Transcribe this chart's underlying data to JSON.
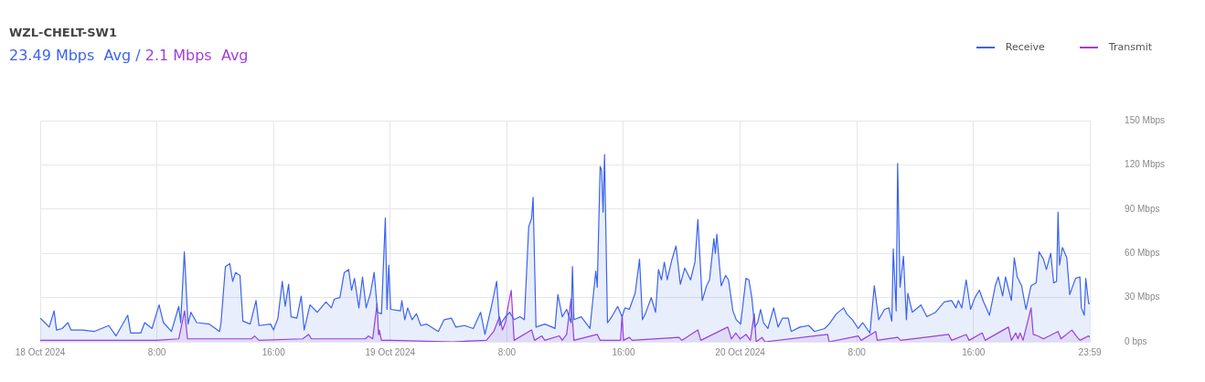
{
  "chart_data": {
    "type": "area",
    "title": "WZL-CHELT-SW1",
    "subtitle": "23.49 Mbps  Avg / 2.1 Mbps  Avg",
    "legend": "top right",
    "grid": true,
    "line_style": "solid",
    "xlim": [
      "2024-10-18T00:00",
      "2024-10-20T23:59"
    ],
    "xticks": [
      {
        "value": "2024-10-18T00:00",
        "label": "18 Oct 2024"
      },
      {
        "value": "2024-10-18T08:00",
        "label": "8:00"
      },
      {
        "value": "2024-10-18T16:00",
        "label": "16:00"
      },
      {
        "value": "2024-10-19T00:00",
        "label": "19 Oct 2024"
      },
      {
        "value": "2024-10-19T08:00",
        "label": "8:00"
      },
      {
        "value": "2024-10-19T16:00",
        "label": "16:00"
      },
      {
        "value": "2024-10-20T00:00",
        "label": "20 Oct 2024"
      },
      {
        "value": "2024-10-20T08:00",
        "label": "8:00"
      },
      {
        "value": "2024-10-20T16:00",
        "label": "16:00"
      },
      {
        "value": "2024-10-20T23:59",
        "label": "23:59"
      }
    ],
    "ylim": [
      0,
      150
    ],
    "yticks": [
      {
        "value": 0,
        "label": "0 bps"
      },
      {
        "value": 30,
        "label": "30 Mbps"
      },
      {
        "value": 60,
        "label": "60 Mbps"
      },
      {
        "value": 90,
        "label": "90 Mbps"
      },
      {
        "value": 120,
        "label": "120 Mbps"
      },
      {
        "value": 150,
        "label": "150 Mbps"
      }
    ],
    "series": [
      {
        "name": "Receive",
        "color": "#3b63f0",
        "x": [
          "2024-10-18T00:00",
          "2024-10-18T00:19",
          "2024-10-18T00:37",
          "2024-10-18T00:57",
          "2024-10-18T01:07",
          "2024-10-18T01:30",
          "2024-10-18T01:54",
          "2024-10-18T02:06",
          "2024-10-18T02:54",
          "2024-10-18T03:42",
          "2024-10-18T04:42",
          "2024-10-18T05:12",
          "2024-10-18T06:00",
          "2024-10-18T06:12",
          "2024-10-18T06:54",
          "2024-10-18T07:10",
          "2024-10-18T07:40",
          "2024-10-18T08:09",
          "2024-10-18T08:27",
          "2024-10-18T09:00",
          "2024-10-18T09:30",
          "2024-10-18T09:38",
          "2024-10-18T09:53",
          "2024-10-18T10:08",
          "2024-10-18T10:20",
          "2024-10-18T10:44",
          "2024-10-18T11:36",
          "2024-10-18T12:18",
          "2024-10-18T12:24",
          "2024-10-18T12:42",
          "2024-10-18T13:00",
          "2024-10-18T13:12",
          "2024-10-18T13:24",
          "2024-10-18T13:42",
          "2024-10-18T13:54",
          "2024-10-18T14:24",
          "2024-10-18T14:48",
          "2024-10-18T15:00",
          "2024-10-18T15:48",
          "2024-10-18T16:00",
          "2024-10-18T16:18",
          "2024-10-18T16:36",
          "2024-10-18T16:48",
          "2024-10-18T17:02",
          "2024-10-18T17:12",
          "2024-10-18T17:36",
          "2024-10-18T17:54",
          "2024-10-18T18:06",
          "2024-10-18T18:30",
          "2024-10-18T19:00",
          "2024-10-18T19:36",
          "2024-10-18T19:58",
          "2024-10-18T20:10",
          "2024-10-18T20:33",
          "2024-10-18T20:51",
          "2024-10-18T21:09",
          "2024-10-18T21:21",
          "2024-10-18T21:33",
          "2024-10-18T21:51",
          "2024-10-18T22:06",
          "2024-10-18T22:21",
          "2024-10-18T22:39",
          "2024-10-18T22:54",
          "2024-10-18T23:08",
          "2024-10-18T23:24",
          "2024-10-18T23:40",
          "2024-10-18T23:47",
          "2024-10-18T23:54",
          "2024-10-19T00:02",
          "2024-10-19T00:42",
          "2024-10-19T00:48",
          "2024-10-19T01:00",
          "2024-10-19T01:12",
          "2024-10-19T01:30",
          "2024-10-19T01:48",
          "2024-10-19T02:06",
          "2024-10-19T02:30",
          "2024-10-19T03:18",
          "2024-10-19T03:42",
          "2024-10-19T04:12",
          "2024-10-19T04:30",
          "2024-10-19T05:06",
          "2024-10-19T05:42",
          "2024-10-19T06:12",
          "2024-10-19T06:30",
          "2024-10-19T06:54",
          "2024-10-19T07:18",
          "2024-10-19T07:30",
          "2024-10-19T07:54",
          "2024-10-19T08:12",
          "2024-10-19T08:30",
          "2024-10-19T08:54",
          "2024-10-19T09:12",
          "2024-10-19T09:30",
          "2024-10-19T09:42",
          "2024-10-19T09:48",
          "2024-10-19T10:00",
          "2024-10-19T10:36",
          "2024-10-19T11:06",
          "2024-10-19T11:18",
          "2024-10-19T11:30",
          "2024-10-19T11:48",
          "2024-10-19T12:06",
          "2024-10-19T12:24",
          "2024-10-19T12:30",
          "2024-10-19T12:36",
          "2024-10-19T13:06",
          "2024-10-19T13:42",
          "2024-10-19T14:06",
          "2024-10-19T14:12",
          "2024-10-19T14:24",
          "2024-10-19T14:30",
          "2024-10-19T14:36",
          "2024-10-19T14:42",
          "2024-10-19T14:54",
          "2024-10-19T15:12",
          "2024-10-19T15:36",
          "2024-10-19T15:54",
          "2024-10-19T16:06",
          "2024-10-19T16:24",
          "2024-10-19T16:48",
          "2024-10-19T17:06",
          "2024-10-19T17:18",
          "2024-10-19T17:30",
          "2024-10-19T17:54",
          "2024-10-19T18:12",
          "2024-10-19T18:24",
          "2024-10-19T18:36",
          "2024-10-19T18:48",
          "2024-10-19T19:00",
          "2024-10-19T19:18",
          "2024-10-19T19:36",
          "2024-10-19T19:54",
          "2024-10-19T20:12",
          "2024-10-19T20:36",
          "2024-10-19T20:54",
          "2024-10-19T21:06",
          "2024-10-19T21:24",
          "2024-10-19T21:42",
          "2024-10-19T21:54",
          "2024-10-19T22:12",
          "2024-10-19T22:18",
          "2024-10-19T22:24",
          "2024-10-19T22:42",
          "2024-10-19T23:00",
          "2024-10-19T23:12",
          "2024-10-19T23:30",
          "2024-10-19T23:44",
          "2024-10-20T00:02",
          "2024-10-20T00:12",
          "2024-10-20T00:24",
          "2024-10-20T00:36",
          "2024-10-20T00:48",
          "2024-10-20T01:00",
          "2024-10-20T01:12",
          "2024-10-20T01:24",
          "2024-10-20T01:36",
          "2024-10-20T01:54",
          "2024-10-20T02:18",
          "2024-10-20T02:36",
          "2024-10-20T02:54",
          "2024-10-20T03:18",
          "2024-10-20T03:30",
          "2024-10-20T04:06",
          "2024-10-20T04:42",
          "2024-10-20T05:06",
          "2024-10-20T05:48",
          "2024-10-20T06:06",
          "2024-10-20T06:36",
          "2024-10-20T07:06",
          "2024-10-20T07:18",
          "2024-10-20T07:42",
          "2024-10-20T08:06",
          "2024-10-20T08:24",
          "2024-10-20T08:54",
          "2024-10-20T09:12",
          "2024-10-20T09:30",
          "2024-10-20T09:54",
          "2024-10-20T10:12",
          "2024-10-20T10:24",
          "2024-10-20T10:30",
          "2024-10-20T10:42",
          "2024-10-20T10:48",
          "2024-10-20T10:58",
          "2024-10-20T11:12",
          "2024-10-20T11:24",
          "2024-10-20T11:30",
          "2024-10-20T11:48",
          "2024-10-20T12:24",
          "2024-10-20T12:48",
          "2024-10-20T13:24",
          "2024-10-20T14:00",
          "2024-10-20T14:30",
          "2024-10-20T14:48",
          "2024-10-20T14:58",
          "2024-10-20T15:12",
          "2024-10-20T15:30",
          "2024-10-20T15:48",
          "2024-10-20T16:06",
          "2024-10-20T16:24",
          "2024-10-20T16:42",
          "2024-10-20T17:06",
          "2024-10-20T17:30",
          "2024-10-20T17:42",
          "2024-10-20T18:00",
          "2024-10-20T18:12",
          "2024-10-20T18:36",
          "2024-10-20T18:48",
          "2024-10-20T19:00",
          "2024-10-20T19:18",
          "2024-10-20T19:36",
          "2024-10-20T19:57",
          "2024-10-20T20:18",
          "2024-10-20T20:30",
          "2024-10-20T20:48",
          "2024-10-20T21:00",
          "2024-10-20T21:18",
          "2024-10-20T21:30",
          "2024-10-20T21:42",
          "2024-10-20T21:48",
          "2024-10-20T21:54",
          "2024-10-20T22:06",
          "2024-10-20T22:24",
          "2024-10-20T22:36",
          "2024-10-20T23:00",
          "2024-10-20T23:18",
          "2024-10-20T23:24",
          "2024-10-20T23:36",
          "2024-10-20T23:42",
          "2024-10-20T23:54",
          "2024-10-20T23:59"
        ],
        "values": [
          16,
          13,
          10,
          21,
          8,
          9,
          13,
          8,
          8,
          7,
          11,
          4,
          18,
          6,
          6,
          13,
          9,
          25,
          13,
          7,
          24,
          13,
          61,
          12,
          20,
          13,
          12,
          7,
          13,
          51,
          53,
          41,
          47,
          45,
          14,
          12,
          28,
          11,
          12,
          8,
          16,
          41,
          24,
          39,
          17,
          16,
          31,
          8,
          25,
          20,
          27,
          23,
          29,
          30,
          47,
          49,
          35,
          43,
          23,
          44,
          23,
          33,
          47,
          20,
          19,
          84,
          22,
          52,
          22,
          21,
          28,
          15,
          23,
          15,
          19,
          11,
          12,
          7,
          15,
          16,
          10,
          11,
          9,
          20,
          5,
          22,
          41,
          11,
          17,
          20,
          15,
          17,
          15,
          78,
          84,
          98,
          10,
          12,
          10,
          9,
          32,
          17,
          22,
          13,
          51,
          15,
          17,
          9,
          48,
          37,
          119,
          116,
          88,
          127,
          13,
          17,
          24,
          17,
          23,
          22,
          33,
          56,
          15,
          19,
          30,
          20,
          49,
          42,
          54,
          42,
          55,
          65,
          39,
          50,
          42,
          54,
          83,
          28,
          38,
          42,
          70,
          60,
          73,
          38,
          45,
          42,
          21,
          15,
          12,
          26,
          43,
          42,
          30,
          10,
          13,
          22,
          13,
          9,
          23,
          10,
          16,
          16,
          7,
          10,
          11,
          7,
          9,
          12,
          19,
          23,
          19,
          15,
          9,
          13,
          6,
          38,
          15,
          22,
          23,
          14,
          63,
          21,
          121,
          37,
          58,
          15,
          33,
          20,
          25,
          17,
          20,
          27,
          28,
          23,
          28,
          23,
          42,
          22,
          30,
          35,
          27,
          18,
          38,
          44,
          31,
          44,
          28,
          57,
          44,
          38,
          22,
          38,
          40,
          61,
          56,
          49,
          60,
          40,
          41,
          88,
          52,
          64,
          57,
          32,
          43,
          44,
          23,
          18,
          43,
          26,
          26
        ]
      },
      {
        "name": "Transmit",
        "color": "#a23ed8",
        "x": [
          "2024-10-18T00:00",
          "2024-10-18T05:00",
          "2024-10-18T08:00",
          "2024-10-18T09:30",
          "2024-10-18T09:54",
          "2024-10-18T10:06",
          "2024-10-18T12:00",
          "2024-10-18T14:30",
          "2024-10-18T14:42",
          "2024-10-18T15:00",
          "2024-10-18T18:00",
          "2024-10-18T18:24",
          "2024-10-18T18:36",
          "2024-10-18T22:18",
          "2024-10-18T22:30",
          "2024-10-18T22:48",
          "2024-10-18T23:06",
          "2024-10-18T23:12",
          "2024-10-18T23:15",
          "2024-10-18T23:24",
          "2024-10-19T00:00",
          "2024-10-19T04:18",
          "2024-10-19T06:36",
          "2024-10-19T07:06",
          "2024-10-19T07:30",
          "2024-10-19T07:42",
          "2024-10-19T07:54",
          "2024-10-19T08:06",
          "2024-10-19T08:18",
          "2024-10-19T08:30",
          "2024-10-19T09:42",
          "2024-10-19T09:54",
          "2024-10-19T10:24",
          "2024-10-19T10:36",
          "2024-10-19T11:36",
          "2024-10-19T11:48",
          "2024-10-19T12:06",
          "2024-10-19T12:24",
          "2024-10-19T12:36",
          "2024-10-19T14:12",
          "2024-10-19T14:24",
          "2024-10-19T15:48",
          "2024-10-19T15:54",
          "2024-10-19T16:00",
          "2024-10-19T16:24",
          "2024-10-19T16:36",
          "2024-10-19T19:48",
          "2024-10-19T20:00",
          "2024-10-19T21:06",
          "2024-10-19T21:18",
          "2024-10-19T23:09",
          "2024-10-19T23:24",
          "2024-10-19T23:42",
          "2024-10-20T00:00",
          "2024-10-20T00:24",
          "2024-10-20T00:42",
          "2024-10-20T00:58",
          "2024-10-20T01:06",
          "2024-10-20T01:30",
          "2024-10-20T01:42",
          "2024-10-20T06:00",
          "2024-10-20T06:06",
          "2024-10-20T08:06",
          "2024-10-20T08:18",
          "2024-10-20T09:18",
          "2024-10-20T09:24",
          "2024-10-20T10:48",
          "2024-10-20T11:00",
          "2024-10-20T14:18",
          "2024-10-20T14:30",
          "2024-10-20T15:30",
          "2024-10-20T15:42",
          "2024-10-20T16:36",
          "2024-10-20T16:48",
          "2024-10-20T18:24",
          "2024-10-20T18:36",
          "2024-10-20T18:54",
          "2024-10-20T19:03",
          "2024-10-20T19:12",
          "2024-10-20T19:24",
          "2024-10-20T19:57",
          "2024-10-20T20:06",
          "2024-10-20T20:24",
          "2024-10-20T20:48",
          "2024-10-20T21:48",
          "2024-10-20T22:00",
          "2024-10-20T22:45",
          "2024-10-20T23:03",
          "2024-10-20T23:18",
          "2024-10-20T23:54",
          "2024-10-20T23:59"
        ],
        "values": [
          1,
          1,
          1,
          2,
          21,
          2,
          2,
          2,
          4,
          1,
          2,
          5,
          2,
          2,
          4,
          2,
          26,
          5,
          8,
          1,
          1,
          0,
          1,
          7,
          17,
          8,
          13,
          25,
          35,
          1,
          8,
          1,
          4,
          1,
          4,
          1,
          5,
          29,
          1,
          5,
          1,
          1,
          18,
          1,
          3,
          1,
          3,
          1,
          8,
          1,
          10,
          2,
          6,
          2,
          5,
          1,
          19,
          0,
          3,
          0,
          5,
          0,
          4,
          1,
          7,
          1,
          3,
          1,
          5,
          1,
          5,
          1,
          6,
          1,
          10,
          1,
          6,
          2,
          6,
          1,
          23,
          5,
          4,
          2,
          7,
          2,
          8,
          4,
          1,
          4,
          3
        ]
      }
    ]
  }
}
